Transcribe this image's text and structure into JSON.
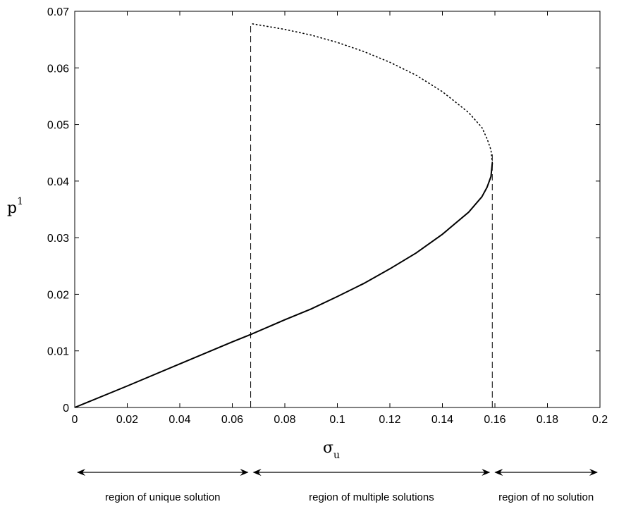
{
  "chart_data": {
    "type": "line",
    "xlabel_main": "σ",
    "xlabel_sub": "u",
    "ylabel_main": "p",
    "ylabel_sup": "1",
    "xlim": [
      0,
      0.2
    ],
    "ylim": [
      0,
      0.07
    ],
    "grid": false,
    "x_ticks": [
      "0",
      "0.02",
      "0.04",
      "0.06",
      "0.08",
      "0.1",
      "0.12",
      "0.14",
      "0.16",
      "0.18",
      "0.2"
    ],
    "y_ticks": [
      "0",
      "0.01",
      "0.02",
      "0.03",
      "0.04",
      "0.05",
      "0.06",
      "0.07"
    ],
    "series": [
      {
        "style": "solid",
        "x": [
          0,
          0.02,
          0.04,
          0.06,
          0.067,
          0.08,
          0.09,
          0.1,
          0.11,
          0.12,
          0.13,
          0.14,
          0.15,
          0.155,
          0.157,
          0.1585,
          0.159
        ],
        "y": [
          0,
          0.0038,
          0.0077,
          0.0116,
          0.0129,
          0.0155,
          0.0174,
          0.0196,
          0.0219,
          0.0245,
          0.0273,
          0.0306,
          0.0345,
          0.0372,
          0.0389,
          0.0408,
          0.0432
        ]
      },
      {
        "style": "dotted",
        "x": [
          0.159,
          0.1585,
          0.157,
          0.155,
          0.15,
          0.14,
          0.13,
          0.12,
          0.11,
          0.1,
          0.09,
          0.08,
          0.07,
          0.0675
        ],
        "y": [
          0.0432,
          0.0455,
          0.0475,
          0.0495,
          0.0521,
          0.0558,
          0.0587,
          0.061,
          0.0629,
          0.0645,
          0.0658,
          0.0668,
          0.0676,
          0.0678
        ]
      }
    ],
    "vertical_lines": [
      {
        "style": "dashed",
        "x": 0.067,
        "y_from": 0,
        "y_to": 0.068
      },
      {
        "style": "dashed",
        "x": 0.159,
        "y_from": 0,
        "y_to": 0.045
      }
    ],
    "regions": [
      {
        "label": "region of unique solution",
        "x_from": 0,
        "x_to": 0.067
      },
      {
        "label": "region of multiple solutions",
        "x_from": 0.067,
        "x_to": 0.159
      },
      {
        "label": "region of no solution",
        "x_from": 0.159,
        "x_to": 0.2
      }
    ]
  }
}
